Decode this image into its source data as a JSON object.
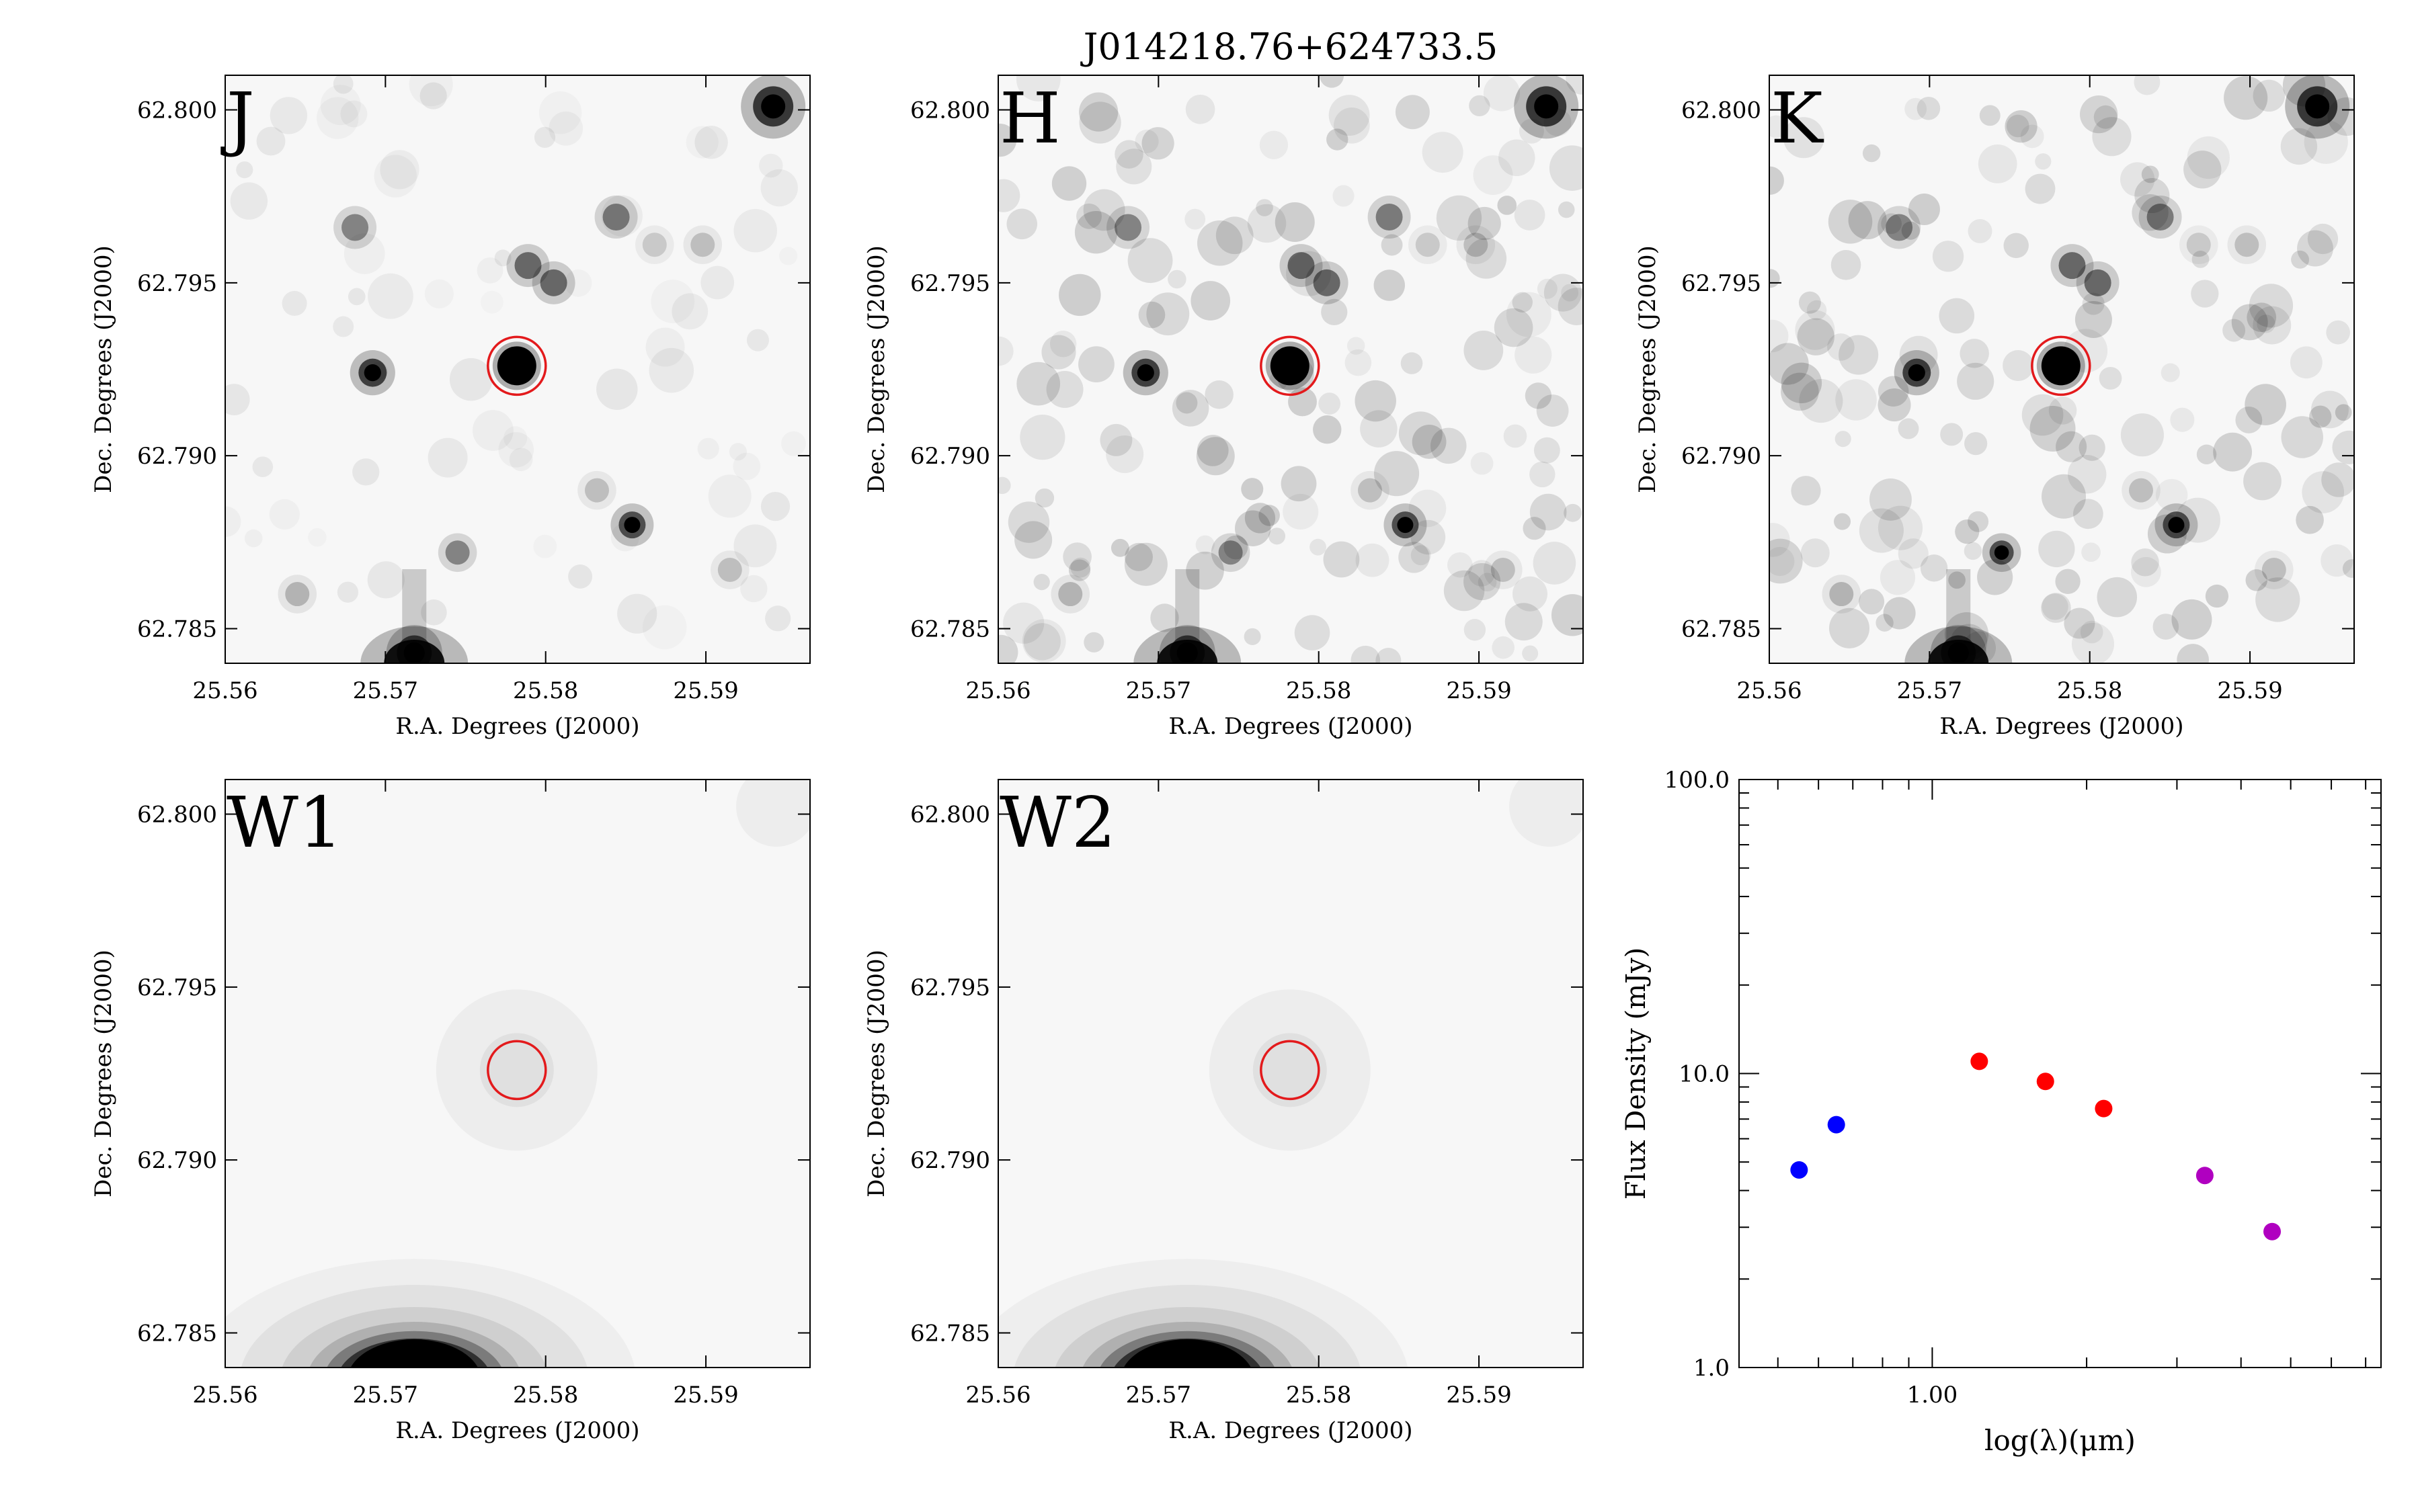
{
  "figure": {
    "title": "J014218.76+624733.5"
  },
  "colors": {
    "band_label": "#ff00ff",
    "aperture": "#e31a1c",
    "near_ir_points": "#0000ff",
    "twomass_points": "#ff0000",
    "wise_points": "#b000c0"
  },
  "cutouts": {
    "xlabel": "R.A. Degrees (J2000)",
    "ylabel": "Dec. Degrees (J2000)",
    "x_ticks": [
      "25.56",
      "25.57",
      "25.58",
      "25.59"
    ],
    "y_ticks": [
      "62.800",
      "62.795",
      "62.790",
      "62.785"
    ],
    "x_range": [
      25.56,
      25.5965
    ],
    "y_range": [
      62.784,
      62.801
    ],
    "aperture_center": {
      "ra": 25.5782,
      "dec": 62.7926
    },
    "panels": [
      {
        "band": "J",
        "kind": "psf"
      },
      {
        "band": "H",
        "kind": "psf"
      },
      {
        "band": "K",
        "kind": "psf"
      },
      {
        "band": "W1",
        "kind": "wise"
      },
      {
        "band": "W2",
        "kind": "wise"
      }
    ]
  },
  "chart_data": {
    "type": "scatter",
    "title": "",
    "xlabel": "log(λ)(μm)",
    "ylabel": "Flux Density (mJy)",
    "x_scale": "log",
    "y_scale": "log",
    "xlim": [
      0.42,
      7.5
    ],
    "ylim": [
      1.0,
      100.0
    ],
    "x_tick_labels": [
      "1.00"
    ],
    "y_tick_labels": [
      "1.0",
      "10.0",
      "100.0"
    ],
    "grid": false,
    "series": [
      {
        "color": "#0000ff",
        "x": [
          0.55,
          0.65
        ],
        "y": [
          4.7,
          6.7
        ]
      },
      {
        "color": "#ff0000",
        "x": [
          1.235,
          1.662,
          2.159
        ],
        "y": [
          11.0,
          9.4,
          7.6
        ]
      },
      {
        "color": "#b000c0",
        "x": [
          3.4,
          4.6
        ],
        "y": [
          4.5,
          2.9
        ]
      }
    ]
  }
}
